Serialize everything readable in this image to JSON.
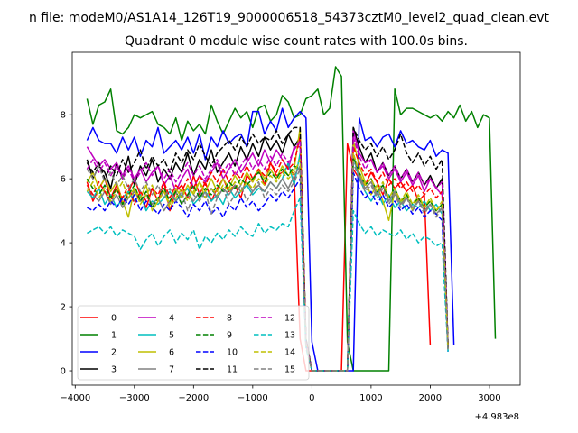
{
  "figure": {
    "suptitle": "n file: modeM0/AS1A14_126T19_9000006518_54373cztM0_level2_quad_clean.evt"
  },
  "chart_data": {
    "type": "line",
    "title": "Quadrant 0 module wise count rates with 100.0s bins.",
    "xlabel": "",
    "ylabel": "",
    "x_offset_label": "+4.983e8",
    "xlim": [
      -4050,
      3520
    ],
    "ylim": [
      -0.45,
      9.95
    ],
    "x_ticks": [
      -4000,
      -3000,
      -2000,
      -1000,
      0,
      1000,
      2000,
      3000
    ],
    "x_tick_labels": [
      "−4000",
      "−3000",
      "−2000",
      "−1000",
      "0",
      "1000",
      "2000",
      "3000"
    ],
    "y_ticks": [
      0,
      2,
      4,
      6,
      8
    ],
    "y_tick_labels": [
      "0",
      "2",
      "4",
      "6",
      "8"
    ],
    "x_start": -3800,
    "x_step": 100,
    "legend": {
      "placement": "lower-left",
      "columns": 4
    },
    "series": [
      {
        "name": "0",
        "color": "#ff0000",
        "dash": "solid",
        "values": [
          5.9,
          5.3,
          5.7,
          6.0,
          5.4,
          5.8,
          5.2,
          5.6,
          6.0,
          5.5,
          5.1,
          5.7,
          5.3,
          5.9,
          5.0,
          5.6,
          5.8,
          5.4,
          6.1,
          5.5,
          5.9,
          5.3,
          5.7,
          6.0,
          5.6,
          5.8,
          5.4,
          6.1,
          5.9,
          6.3,
          5.8,
          6.5,
          6.1,
          6.2,
          6.4,
          6.1,
          1.0,
          0,
          0,
          0,
          0,
          0,
          0,
          0,
          7.1,
          6.3,
          6.0,
          5.8,
          6.2,
          5.9,
          5.5,
          6.0,
          5.7,
          5.9,
          5.6,
          5.8,
          5.3,
          5.5,
          0.8
        ]
      },
      {
        "name": "1",
        "color": "#008000",
        "dash": "solid",
        "values": [
          8.5,
          7.7,
          8.3,
          8.4,
          8.8,
          7.5,
          7.4,
          7.6,
          8.0,
          7.9,
          8.0,
          8.1,
          7.7,
          7.6,
          7.4,
          7.9,
          7.2,
          7.8,
          7.5,
          7.7,
          7.4,
          8.3,
          7.8,
          7.4,
          7.8,
          8.2,
          7.9,
          8.1,
          7.6,
          8.2,
          8.3,
          7.8,
          8.0,
          8.6,
          8.4,
          7.9,
          8.0,
          8.5,
          8.6,
          8.8,
          8.0,
          8.2,
          9.5,
          9.2,
          0.9,
          0,
          0,
          0,
          0,
          0,
          0,
          0,
          8.8,
          8.0,
          8.2,
          8.2,
          8.1,
          8.0,
          7.9,
          8.0,
          7.8,
          8.1,
          7.9,
          8.3,
          7.8,
          8.1,
          7.6,
          8.0,
          7.9,
          1.0
        ]
      },
      {
        "name": "2",
        "color": "#0000ff",
        "dash": "solid",
        "values": [
          7.2,
          7.6,
          7.2,
          7.1,
          7.1,
          6.8,
          7.3,
          6.9,
          7.3,
          6.7,
          7.2,
          7.0,
          7.6,
          6.8,
          7.0,
          7.2,
          6.9,
          7.3,
          6.8,
          7.4,
          6.6,
          7.3,
          7.0,
          7.5,
          7.1,
          7.3,
          7.4,
          7.0,
          8.1,
          8.1,
          7.4,
          7.8,
          7.5,
          8.2,
          7.6,
          7.9,
          8.1,
          7.9,
          0.9,
          0,
          0,
          0,
          0,
          0,
          0,
          0,
          7.9,
          7.2,
          7.3,
          7.0,
          7.3,
          7.4,
          7.0,
          7.5,
          7.1,
          7.2,
          7.0,
          6.9,
          7.2,
          6.7,
          6.9,
          6.8,
          0.8
        ]
      },
      {
        "name": "3",
        "color": "#000000",
        "dash": "solid",
        "values": [
          6.6,
          6.0,
          6.4,
          6.2,
          5.7,
          6.5,
          6.0,
          6.7,
          5.8,
          6.4,
          6.1,
          6.6,
          5.9,
          6.3,
          6.0,
          6.5,
          6.2,
          6.8,
          6.1,
          6.6,
          6.3,
          6.9,
          6.2,
          6.5,
          6.8,
          6.4,
          7.0,
          6.6,
          7.1,
          6.7,
          7.3,
          6.9,
          7.2,
          6.8,
          7.4,
          7.0,
          7.3,
          1.0,
          0,
          0,
          0,
          0,
          0,
          0,
          0,
          7.6,
          7.0,
          6.5,
          6.8,
          6.2,
          6.5,
          6.1,
          6.4,
          6.0,
          6.3,
          5.9,
          6.2,
          5.8,
          6.1,
          5.7,
          6.0,
          0.8
        ]
      },
      {
        "name": "4",
        "color": "#bf00bf",
        "dash": "solid",
        "values": [
          7.0,
          6.7,
          6.4,
          6.6,
          6.3,
          6.5,
          6.1,
          6.4,
          6.0,
          6.3,
          5.9,
          6.2,
          6.4,
          5.8,
          6.1,
          5.6,
          6.0,
          6.3,
          5.7,
          6.1,
          5.9,
          6.2,
          6.5,
          6.0,
          6.3,
          6.6,
          6.2,
          6.5,
          6.8,
          6.4,
          6.9,
          6.5,
          6.9,
          6.6,
          6.3,
          7.0,
          7.0,
          0.9,
          0,
          0,
          0,
          0,
          0,
          0,
          0,
          7.5,
          6.8,
          6.5,
          6.6,
          6.2,
          6.4,
          6.0,
          6.3,
          5.9,
          6.2,
          5.8,
          6.1,
          5.6,
          6.0,
          5.7,
          5.5,
          0.7
        ]
      },
      {
        "name": "5",
        "color": "#00bfbf",
        "dash": "solid",
        "values": [
          5.6,
          5.4,
          5.7,
          5.2,
          5.5,
          5.1,
          5.4,
          5.6,
          5.3,
          5.5,
          5.0,
          5.3,
          5.2,
          5.4,
          5.6,
          5.3,
          5.5,
          5.7,
          5.2,
          5.4,
          5.6,
          5.3,
          5.5,
          5.2,
          5.7,
          5.4,
          5.6,
          5.8,
          5.5,
          5.7,
          5.6,
          5.9,
          5.7,
          6.0,
          6.5,
          5.8,
          6.8,
          0.8,
          0,
          0,
          0,
          0,
          0,
          0,
          0,
          6.7,
          6.0,
          5.6,
          5.3,
          5.6,
          5.2,
          5.5,
          5.1,
          5.3,
          5.0,
          5.2,
          5.1,
          5.3,
          5.0,
          5.2,
          4.9,
          0.6
        ]
      },
      {
        "name": "6",
        "color": "#bfbf00",
        "dash": "solid",
        "values": [
          5.9,
          6.2,
          5.7,
          6.0,
          5.6,
          5.9,
          5.3,
          4.8,
          5.7,
          5.4,
          5.8,
          5.0,
          5.3,
          5.6,
          5.2,
          5.7,
          5.4,
          5.8,
          5.5,
          5.9,
          5.6,
          6.0,
          5.6,
          6.0,
          5.7,
          6.1,
          5.8,
          6.2,
          5.9,
          6.3,
          6.0,
          6.3,
          6.0,
          6.4,
          6.1,
          6.3,
          7.6,
          0.9,
          0,
          0,
          0,
          0,
          0,
          0,
          0,
          7.2,
          6.4,
          5.9,
          5.5,
          5.8,
          5.3,
          4.7,
          5.6,
          5.2,
          5.5,
          5.0,
          5.4,
          5.1,
          5.3,
          5.0,
          5.2,
          0.7
        ]
      },
      {
        "name": "7",
        "color": "#808080",
        "dash": "solid",
        "values": [
          5.7,
          5.5,
          5.3,
          5.6,
          5.2,
          5.5,
          5.1,
          5.4,
          5.6,
          5.3,
          5.5,
          5.2,
          5.4,
          5.0,
          5.3,
          5.6,
          5.2,
          5.5,
          5.3,
          5.6,
          5.4,
          5.7,
          5.4,
          5.7,
          5.5,
          5.8,
          5.6,
          5.9,
          5.6,
          5.8,
          5.6,
          5.9,
          5.7,
          6.0,
          5.7,
          6.1,
          6.4,
          0.8,
          0,
          0,
          0,
          0,
          0,
          0,
          0,
          6.7,
          6.1,
          5.7,
          5.9,
          5.5,
          5.8,
          5.3,
          5.6,
          5.2,
          5.4,
          5.1,
          5.3,
          5.0,
          5.2,
          4.9,
          5.1,
          0.7
        ]
      },
      {
        "name": "8",
        "color": "#ff0000",
        "dash": "dashed",
        "values": [
          5.8,
          5.5,
          5.9,
          5.6,
          5.3,
          5.7,
          5.4,
          5.8,
          5.2,
          5.6,
          5.3,
          5.7,
          5.5,
          5.9,
          5.4,
          5.8,
          5.6,
          6.0,
          5.7,
          6.1,
          5.8,
          6.2,
          5.9,
          6.3,
          5.9,
          6.2,
          6.0,
          6.4,
          6.0,
          6.3,
          6.1,
          6.5,
          6.2,
          6.6,
          6.3,
          6.5,
          7.3,
          0.9,
          0,
          0,
          0,
          0,
          0,
          0,
          0,
          7.0,
          6.5,
          6.1,
          6.3,
          5.9,
          6.2,
          5.8,
          6.0,
          5.7,
          5.9,
          5.6,
          5.8,
          5.5,
          5.7,
          5.4,
          5.6,
          0.7
        ]
      },
      {
        "name": "9",
        "color": "#008000",
        "dash": "dashed",
        "values": [
          6.0,
          5.7,
          5.5,
          5.8,
          5.4,
          5.7,
          5.2,
          5.5,
          5.8,
          5.3,
          5.6,
          5.1,
          5.4,
          5.7,
          5.3,
          5.6,
          5.2,
          5.5,
          5.8,
          5.4,
          5.7,
          5.5,
          5.8,
          5.6,
          5.9,
          5.7,
          6.0,
          5.8,
          6.0,
          6.2,
          5.9,
          6.2,
          6.0,
          6.3,
          6.1,
          6.4,
          6.3,
          0.8,
          0,
          0,
          0,
          0,
          0,
          0,
          0,
          6.7,
          6.2,
          5.8,
          6.0,
          5.6,
          5.8,
          5.4,
          5.7,
          5.3,
          5.5,
          5.2,
          5.4,
          5.1,
          5.3,
          5.0,
          5.2,
          0.7
        ]
      },
      {
        "name": "10",
        "color": "#0000ff",
        "dash": "dashed",
        "values": [
          5.1,
          5.0,
          5.2,
          5.0,
          5.3,
          5.1,
          5.4,
          5.2,
          5.5,
          5.0,
          5.3,
          5.1,
          4.9,
          5.2,
          5.0,
          5.3,
          5.1,
          4.8,
          5.2,
          5.0,
          5.3,
          4.9,
          5.1,
          4.8,
          5.2,
          5.0,
          5.4,
          5.1,
          5.3,
          5.0,
          5.2,
          5.5,
          5.3,
          5.6,
          5.4,
          5.7,
          6.0,
          0.8,
          0,
          0,
          0,
          0,
          0,
          0,
          0,
          6.2,
          5.7,
          5.4,
          5.6,
          5.2,
          5.5,
          5.1,
          5.3,
          5.0,
          5.2,
          4.9,
          5.1,
          4.8,
          5.0,
          4.9,
          4.7,
          0.6
        ]
      },
      {
        "name": "11",
        "color": "#000000",
        "dash": "dashed",
        "values": [
          6.5,
          6.2,
          6.5,
          6.0,
          6.4,
          6.1,
          6.6,
          6.2,
          6.5,
          6.9,
          6.3,
          6.7,
          6.4,
          6.6,
          6.2,
          6.8,
          6.5,
          6.9,
          6.6,
          7.1,
          6.7,
          6.4,
          6.8,
          7.0,
          7.2,
          6.9,
          7.3,
          7.0,
          7.4,
          7.1,
          7.3,
          7.2,
          7.5,
          7.1,
          7.4,
          7.6,
          7.6,
          1.0,
          0,
          0,
          0,
          0,
          0,
          0,
          0,
          7.6,
          7.2,
          6.9,
          7.1,
          6.7,
          7.0,
          6.6,
          6.9,
          7.4,
          6.8,
          6.5,
          6.8,
          6.4,
          6.7,
          6.3,
          6.6,
          0.8
        ]
      },
      {
        "name": "12",
        "color": "#bf00bf",
        "dash": "dashed",
        "values": [
          6.3,
          6.6,
          6.2,
          6.5,
          6.1,
          6.4,
          6.0,
          6.3,
          5.9,
          6.2,
          6.5,
          6.1,
          6.4,
          6.0,
          6.3,
          5.9,
          6.2,
          6.5,
          6.1,
          6.4,
          6.0,
          6.3,
          6.6,
          6.2,
          6.5,
          6.1,
          6.4,
          6.7,
          6.3,
          6.6,
          6.3,
          6.7,
          6.4,
          6.8,
          6.5,
          6.9,
          7.2,
          0.9,
          0,
          0,
          0,
          0,
          0,
          0,
          0,
          7.3,
          6.7,
          6.3,
          6.6,
          6.2,
          6.5,
          6.1,
          6.4,
          6.0,
          6.3,
          5.9,
          6.2,
          5.8,
          6.0,
          5.7,
          5.9,
          0.7
        ]
      },
      {
        "name": "13",
        "color": "#00bfbf",
        "dash": "dashed",
        "values": [
          4.3,
          4.4,
          4.5,
          4.3,
          4.5,
          4.2,
          4.4,
          4.3,
          4.2,
          3.8,
          4.1,
          4.3,
          3.9,
          4.2,
          4.4,
          4.0,
          4.3,
          4.1,
          4.4,
          3.8,
          4.2,
          4.0,
          4.3,
          4.1,
          4.4,
          4.2,
          4.5,
          4.3,
          4.2,
          4.6,
          4.3,
          4.5,
          4.4,
          4.6,
          4.5,
          5.0,
          5.4,
          0.7,
          0,
          0,
          0,
          0,
          0,
          0,
          0,
          5.0,
          4.6,
          4.3,
          4.5,
          4.2,
          4.4,
          4.3,
          4.2,
          4.4,
          4.1,
          4.3,
          4.0,
          4.2,
          4.1,
          3.9,
          4.0,
          0.6
        ]
      },
      {
        "name": "14",
        "color": "#bfbf00",
        "dash": "dashed",
        "values": [
          5.6,
          5.9,
          5.4,
          5.7,
          5.3,
          5.6,
          5.9,
          5.4,
          5.7,
          5.2,
          5.5,
          5.8,
          5.3,
          5.6,
          5.1,
          5.4,
          5.7,
          5.3,
          5.6,
          5.9,
          5.4,
          5.7,
          5.5,
          5.8,
          5.6,
          5.9,
          5.6,
          5.9,
          5.7,
          6.0,
          5.8,
          6.1,
          5.9,
          6.2,
          6.0,
          6.2,
          6.6,
          0.8,
          0,
          0,
          0,
          0,
          0,
          0,
          0,
          6.8,
          6.2,
          5.8,
          6.0,
          5.6,
          5.9,
          5.4,
          5.7,
          5.3,
          5.6,
          5.2,
          5.5,
          5.1,
          5.4,
          5.0,
          5.3,
          0.7
        ]
      },
      {
        "name": "15",
        "color": "#808080",
        "dash": "dashed",
        "values": [
          6.3,
          6.0,
          6.4,
          5.9,
          6.2,
          5.8,
          6.1,
          5.7,
          6.0,
          5.6,
          5.9,
          5.5,
          5.8,
          5.4,
          5.7,
          5.3,
          5.6,
          5.0,
          5.5,
          5.3,
          5.6,
          4.9,
          5.4,
          5.7,
          5.2,
          5.5,
          5.8,
          5.3,
          5.6,
          5.9,
          5.4,
          5.7,
          5.5,
          5.8,
          5.6,
          5.9,
          6.3,
          0.8,
          0,
          0,
          0,
          0,
          0,
          0,
          0,
          6.5,
          6.0,
          5.6,
          5.8,
          5.4,
          5.7,
          5.2,
          5.5,
          5.1,
          5.4,
          5.0,
          5.3,
          4.9,
          5.2,
          4.8,
          5.1,
          0.6
        ]
      }
    ]
  }
}
